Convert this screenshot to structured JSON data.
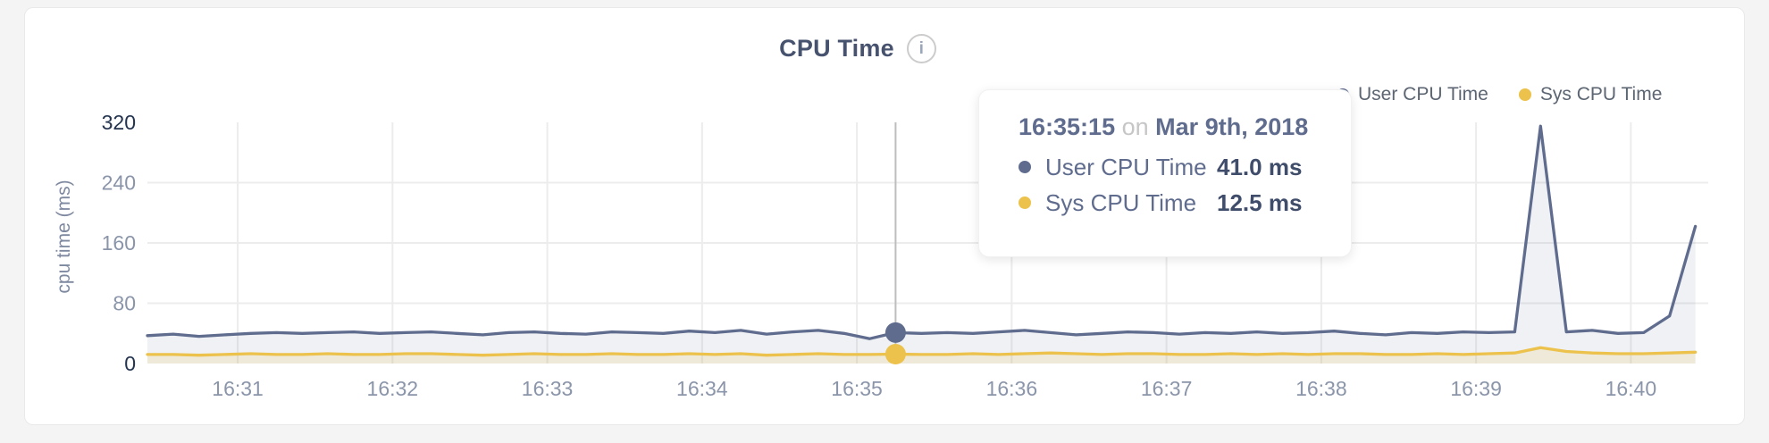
{
  "header": {
    "title": "CPU Time",
    "info_glyph": "i"
  },
  "axis": {
    "y_title": "cpu time (ms)"
  },
  "legend": {
    "items": [
      {
        "label": "User CPU Time",
        "color": "#5f6c8e"
      },
      {
        "label": "Sys CPU Time",
        "color": "#ecc24d"
      }
    ]
  },
  "tooltip": {
    "time": "16:35:15",
    "connector": "on",
    "date": "Mar 9th, 2018",
    "rows": [
      {
        "label": "User CPU Time",
        "value": "41.0 ms",
        "color": "#5f6c8e"
      },
      {
        "label": "Sys CPU Time",
        "value": "12.5 ms",
        "color": "#ecc24d"
      }
    ]
  },
  "chart_data": {
    "type": "area",
    "title": "CPU Time",
    "ylabel": "cpu time (ms)",
    "ylim": [
      0,
      320
    ],
    "y_ticks": [
      0,
      80,
      160,
      240,
      320
    ],
    "x_ticks": [
      "16:31",
      "16:32",
      "16:33",
      "16:34",
      "16:35",
      "16:36",
      "16:37",
      "16:38",
      "16:39",
      "16:40"
    ],
    "x_domain": [
      "16:30:25",
      "16:40:30"
    ],
    "x_start": "16:30:25",
    "sample_interval_seconds": 10,
    "grid": true,
    "legend_position": "top-right",
    "series": [
      {
        "name": "User CPU Time",
        "color": "#5f6c8e",
        "fill": "rgba(100,114,148,0.10)",
        "values": [
          37,
          39,
          36,
          38,
          40,
          41,
          40,
          41,
          42,
          40,
          41,
          42,
          40,
          38,
          41,
          42,
          40,
          39,
          42,
          41,
          40,
          43,
          41,
          44,
          39,
          42,
          44,
          40,
          33,
          41,
          40,
          41,
          40,
          42,
          44,
          41,
          38,
          40,
          42,
          41,
          39,
          41,
          40,
          42,
          40,
          41,
          43,
          40,
          38,
          41,
          40,
          42,
          41,
          42,
          315,
          42,
          44,
          40,
          41,
          63,
          182
        ]
      },
      {
        "name": "Sys CPU Time",
        "color": "#ecc24d",
        "fill": "rgba(236,194,76,0.16)",
        "values": [
          12,
          12,
          11,
          12,
          13,
          12,
          12,
          13,
          12,
          12,
          13,
          13,
          12,
          11,
          12,
          13,
          12,
          12,
          13,
          12,
          12,
          13,
          12,
          13,
          11,
          12,
          13,
          12,
          12,
          12.5,
          12,
          12,
          13,
          12,
          13,
          14,
          13,
          12,
          13,
          13,
          12,
          12,
          13,
          12,
          13,
          12,
          13,
          13,
          12,
          12,
          13,
          12,
          13,
          14,
          21,
          16,
          14,
          13,
          13,
          14,
          15
        ]
      }
    ],
    "highlight": {
      "index": 29,
      "time": "16:35:15",
      "values": [
        41.0,
        12.5
      ]
    }
  }
}
